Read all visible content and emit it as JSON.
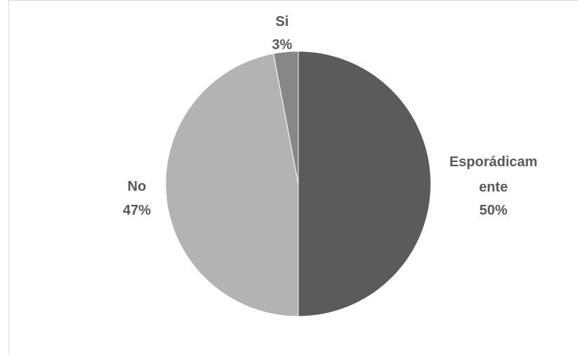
{
  "chart_data": {
    "type": "pie",
    "start_angle_deg": 0,
    "direction": "clockwise",
    "slices": [
      {
        "name": "Esporádicamente",
        "label_lines": [
          "Esporádicam",
          "ente"
        ],
        "percent_label": "50%",
        "value": 50,
        "color": "#5b5b5b"
      },
      {
        "name": "No",
        "label_lines": [
          "No"
        ],
        "percent_label": "47%",
        "value": 47,
        "color": "#b3b3b3"
      },
      {
        "name": "Si",
        "label_lines": [
          "Si"
        ],
        "percent_label": "3%",
        "value": 3,
        "color": "#878787"
      }
    ],
    "legend": "none",
    "title": ""
  }
}
